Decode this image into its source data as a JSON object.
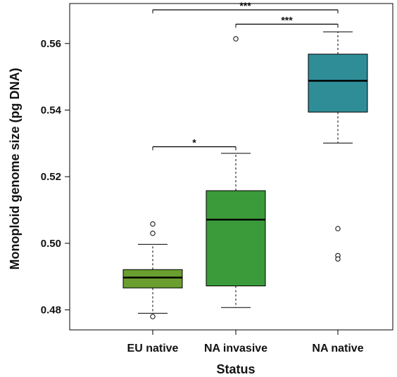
{
  "chart_data": {
    "type": "box",
    "xlabel": "Status",
    "ylabel": "Monoploid genome size (pg DNA)",
    "ylim": [
      0.474,
      0.572
    ],
    "yticks": [
      "0.48",
      "0.50",
      "0.52",
      "0.54",
      "0.56"
    ],
    "categories": [
      "EU native",
      "NA invasive",
      "NA native"
    ],
    "boxes": [
      {
        "name": "EU native",
        "color": "#6a9e2e",
        "whisker_low": 0.479,
        "q1": 0.4866,
        "median": 0.4897,
        "q3": 0.4921,
        "whisker_high": 0.4997,
        "outliers": [
          0.5058,
          0.503,
          0.478
        ]
      },
      {
        "name": "NA invasive",
        "color": "#3b9a3a",
        "whisker_low": 0.4807,
        "q1": 0.4872,
        "median": 0.5071,
        "q3": 0.5158,
        "whisker_high": 0.527,
        "outliers": [
          0.5614
        ]
      },
      {
        "name": "NA native",
        "color": "#2f8d98",
        "whisker_low": 0.5301,
        "q1": 0.5394,
        "median": 0.5488,
        "q3": 0.5568,
        "whisker_high": 0.5635,
        "outliers": [
          0.5044,
          0.4963,
          0.4953
        ]
      }
    ],
    "significance": [
      {
        "from": "EU native",
        "to": "NA invasive",
        "y": 0.529,
        "label": "*"
      },
      {
        "from": "NA invasive",
        "to": "NA native",
        "y": 0.5658,
        "label": "***"
      },
      {
        "from": "EU native",
        "to": "NA native",
        "y": 0.5701,
        "label": "***"
      }
    ]
  }
}
